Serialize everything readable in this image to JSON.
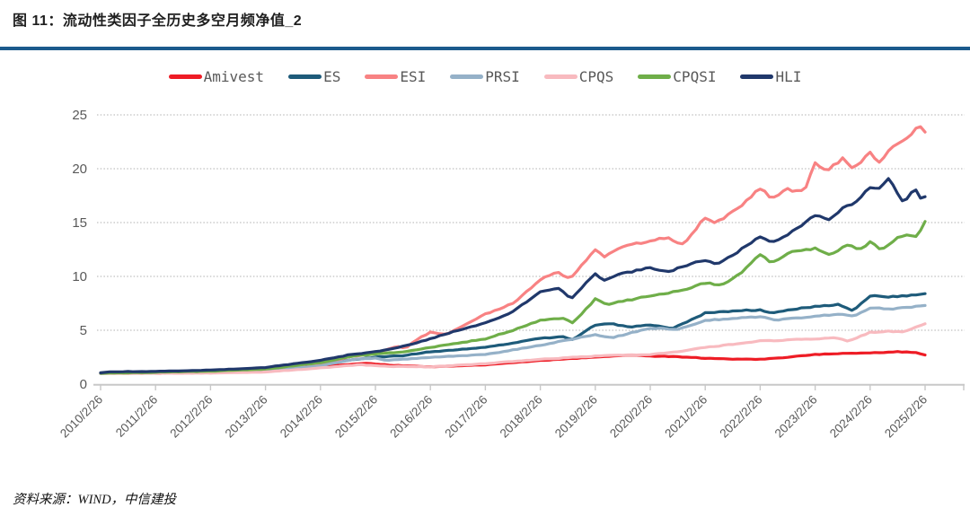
{
  "page": {
    "title": "图 11：流动性类因子全历史多空月频净值_2",
    "source": "资料来源：WIND，中信建投"
  },
  "colors": {
    "title_rule": "#1b5a8c",
    "axis_line": "#c8c8c8",
    "gridline": "#b0b0b0",
    "tick_label": "#595959"
  },
  "chart_data": {
    "type": "line",
    "title": "流动性类因子全历史多空月频净值_2",
    "xlabel": "",
    "ylabel": "",
    "grid": "horizontal-dotted",
    "legend_position": "top",
    "x_axis": {
      "labels": [
        "2010/2/26",
        "2011/2/26",
        "2012/2/26",
        "2013/2/26",
        "2014/2/26",
        "2015/2/26",
        "2016/2/26",
        "2017/2/26",
        "2018/2/26",
        "2019/2/26",
        "2020/2/26",
        "2021/2/26",
        "2022/2/26",
        "2023/2/26",
        "2024/2/26",
        "2025/2/26"
      ],
      "label_rotation_deg": 45
    },
    "y_axis": {
      "min": 0,
      "max": 25,
      "step": 5,
      "ticks": [
        0,
        5,
        10,
        15,
        20,
        25
      ]
    },
    "x_unit": "years since 2010/2/26 (monthly net value series)",
    "series": [
      {
        "name": "Amivest",
        "color": "#ee1c25",
        "end_value": 2.7,
        "points": [
          [
            0,
            1.0
          ],
          [
            0.3,
            1.08
          ],
          [
            1,
            1.1
          ],
          [
            2,
            1.12
          ],
          [
            3,
            1.25
          ],
          [
            4,
            1.6
          ],
          [
            4.8,
            1.95
          ],
          [
            5.3,
            1.75
          ],
          [
            6,
            1.6
          ],
          [
            7,
            1.8
          ],
          [
            8,
            2.2
          ],
          [
            8.5,
            2.35
          ],
          [
            9,
            2.5
          ],
          [
            9.6,
            2.7
          ],
          [
            10,
            2.6
          ],
          [
            10.5,
            2.55
          ],
          [
            11,
            2.4
          ],
          [
            11.5,
            2.32
          ],
          [
            12,
            2.3
          ],
          [
            12.5,
            2.5
          ],
          [
            13,
            2.75
          ],
          [
            13.5,
            2.85
          ],
          [
            14,
            2.9
          ],
          [
            14.5,
            3.0
          ],
          [
            14.8,
            2.95
          ],
          [
            15,
            2.7
          ]
        ]
      },
      {
        "name": "ES",
        "color": "#1e5b7a",
        "end_value": 8.4,
        "points": [
          [
            0,
            1.0
          ],
          [
            1,
            1.1
          ],
          [
            2,
            1.15
          ],
          [
            3,
            1.3
          ],
          [
            4,
            1.85
          ],
          [
            4.5,
            2.2
          ],
          [
            5,
            2.5
          ],
          [
            5.5,
            2.65
          ],
          [
            6,
            3.0
          ],
          [
            7,
            3.4
          ],
          [
            7.5,
            3.8
          ],
          [
            8,
            4.25
          ],
          [
            8.4,
            4.4
          ],
          [
            8.6,
            4.15
          ],
          [
            9,
            5.5
          ],
          [
            9.3,
            5.6
          ],
          [
            9.6,
            5.3
          ],
          [
            10,
            5.5
          ],
          [
            10.4,
            5.15
          ],
          [
            11,
            6.6
          ],
          [
            11.5,
            6.8
          ],
          [
            12,
            6.9
          ],
          [
            12.2,
            6.6
          ],
          [
            12.6,
            6.95
          ],
          [
            13,
            7.2
          ],
          [
            13.4,
            7.4
          ],
          [
            13.7,
            6.8
          ],
          [
            14,
            8.2
          ],
          [
            14.4,
            8.1
          ],
          [
            14.7,
            8.2
          ],
          [
            15,
            8.4
          ]
        ]
      },
      {
        "name": "ESI",
        "color": "#f88283",
        "end_value": 23.4,
        "points": [
          [
            0,
            1.0
          ],
          [
            1,
            1.0
          ],
          [
            2,
            1.05
          ],
          [
            3,
            1.2
          ],
          [
            4,
            1.75
          ],
          [
            4.5,
            2.5
          ],
          [
            5,
            2.9
          ],
          [
            5.4,
            3.5
          ],
          [
            5.55,
            3.35
          ],
          [
            5.8,
            4.3
          ],
          [
            6,
            4.8
          ],
          [
            6.3,
            4.6
          ],
          [
            7,
            6.5
          ],
          [
            7.5,
            7.5
          ],
          [
            8,
            9.7
          ],
          [
            8.3,
            10.4
          ],
          [
            8.55,
            9.8
          ],
          [
            9,
            12.5
          ],
          [
            9.15,
            11.8
          ],
          [
            9.5,
            12.8
          ],
          [
            10,
            13.3
          ],
          [
            10.3,
            13.6
          ],
          [
            10.6,
            13.0
          ],
          [
            11,
            15.5
          ],
          [
            11.2,
            15.0
          ],
          [
            11.6,
            16.3
          ],
          [
            12,
            18.2
          ],
          [
            12.2,
            17.3
          ],
          [
            12.5,
            18.1
          ],
          [
            12.8,
            17.8
          ],
          [
            13,
            20.5
          ],
          [
            13.2,
            19.8
          ],
          [
            13.5,
            20.9
          ],
          [
            13.7,
            20.0
          ],
          [
            14,
            21.5
          ],
          [
            14.15,
            20.6
          ],
          [
            14.4,
            22.0
          ],
          [
            14.7,
            22.9
          ],
          [
            14.9,
            24.0
          ],
          [
            15,
            23.4
          ]
        ]
      },
      {
        "name": "PRSI",
        "color": "#95b1c8",
        "end_value": 7.3,
        "points": [
          [
            0,
            1.0
          ],
          [
            1,
            1.05
          ],
          [
            2,
            1.1
          ],
          [
            3,
            1.2
          ],
          [
            4,
            1.7
          ],
          [
            4.6,
            2.3
          ],
          [
            5,
            2.4
          ],
          [
            5.2,
            2.2
          ],
          [
            6,
            2.5
          ],
          [
            7,
            2.75
          ],
          [
            8,
            3.6
          ],
          [
            9,
            4.6
          ],
          [
            9.3,
            4.3
          ],
          [
            10,
            5.2
          ],
          [
            10.5,
            5.1
          ],
          [
            11,
            5.9
          ],
          [
            11.5,
            6.1
          ],
          [
            12,
            6.25
          ],
          [
            12.3,
            5.95
          ],
          [
            13,
            6.3
          ],
          [
            13.5,
            6.5
          ],
          [
            13.7,
            6.3
          ],
          [
            14,
            7.1
          ],
          [
            14.4,
            6.95
          ],
          [
            14.7,
            7.15
          ],
          [
            15,
            7.3
          ]
        ]
      },
      {
        "name": "CPQS",
        "color": "#f8babf",
        "end_value": 5.6,
        "points": [
          [
            0,
            1.0
          ],
          [
            1,
            1.0
          ],
          [
            2,
            1.03
          ],
          [
            3,
            1.12
          ],
          [
            4,
            1.5
          ],
          [
            4.7,
            1.8
          ],
          [
            5.3,
            1.65
          ],
          [
            6,
            1.6
          ],
          [
            7,
            1.9
          ],
          [
            8,
            2.3
          ],
          [
            9,
            2.6
          ],
          [
            9.5,
            2.7
          ],
          [
            10,
            2.75
          ],
          [
            10.5,
            3.0
          ],
          [
            11,
            3.4
          ],
          [
            11.5,
            3.7
          ],
          [
            12,
            4.0
          ],
          [
            12.5,
            4.1
          ],
          [
            13,
            4.2
          ],
          [
            13.4,
            4.3
          ],
          [
            13.6,
            4.0
          ],
          [
            14,
            4.8
          ],
          [
            14.3,
            4.9
          ],
          [
            14.6,
            4.85
          ],
          [
            15,
            5.6
          ]
        ]
      },
      {
        "name": "CPQSI",
        "color": "#6fae49",
        "end_value": 15.1,
        "points": [
          [
            0,
            1.0
          ],
          [
            1,
            1.1
          ],
          [
            2,
            1.2
          ],
          [
            3,
            1.4
          ],
          [
            4,
            2.0
          ],
          [
            4.6,
            2.6
          ],
          [
            5,
            2.8
          ],
          [
            5.5,
            3.0
          ],
          [
            6,
            3.4
          ],
          [
            6.5,
            3.8
          ],
          [
            7,
            4.2
          ],
          [
            7.5,
            5.0
          ],
          [
            8,
            5.9
          ],
          [
            8.4,
            6.1
          ],
          [
            8.6,
            5.7
          ],
          [
            9,
            7.9
          ],
          [
            9.2,
            7.4
          ],
          [
            9.6,
            7.8
          ],
          [
            10,
            8.2
          ],
          [
            10.5,
            8.6
          ],
          [
            11,
            9.4
          ],
          [
            11.3,
            9.2
          ],
          [
            11.7,
            10.5
          ],
          [
            12,
            12.1
          ],
          [
            12.2,
            11.3
          ],
          [
            12.6,
            12.3
          ],
          [
            13,
            12.6
          ],
          [
            13.3,
            12.0
          ],
          [
            13.6,
            13.0
          ],
          [
            13.8,
            12.4
          ],
          [
            14,
            13.2
          ],
          [
            14.2,
            12.5
          ],
          [
            14.5,
            13.6
          ],
          [
            14.7,
            13.9
          ],
          [
            14.85,
            13.6
          ],
          [
            15,
            15.1
          ]
        ]
      },
      {
        "name": "HLI",
        "color": "#20386b",
        "end_value": 17.4,
        "points": [
          [
            0,
            1.05
          ],
          [
            0.2,
            1.15
          ],
          [
            1,
            1.18
          ],
          [
            2,
            1.3
          ],
          [
            3,
            1.55
          ],
          [
            4,
            2.2
          ],
          [
            4.5,
            2.7
          ],
          [
            5,
            3.0
          ],
          [
            5.5,
            3.5
          ],
          [
            6,
            4.2
          ],
          [
            6.5,
            5.0
          ],
          [
            7,
            5.7
          ],
          [
            7.5,
            6.7
          ],
          [
            8,
            8.6
          ],
          [
            8.35,
            8.9
          ],
          [
            8.55,
            7.85
          ],
          [
            9,
            10.25
          ],
          [
            9.15,
            9.6
          ],
          [
            9.5,
            10.3
          ],
          [
            10,
            10.8
          ],
          [
            10.3,
            10.4
          ],
          [
            10.7,
            11.1
          ],
          [
            11,
            11.5
          ],
          [
            11.2,
            11.15
          ],
          [
            11.6,
            12.3
          ],
          [
            12,
            13.75
          ],
          [
            12.2,
            13.1
          ],
          [
            12.6,
            14.2
          ],
          [
            13,
            15.7
          ],
          [
            13.25,
            15.2
          ],
          [
            13.5,
            16.3
          ],
          [
            13.75,
            17.0
          ],
          [
            14.0,
            18.3
          ],
          [
            14.15,
            18.2
          ],
          [
            14.35,
            19.1
          ],
          [
            14.6,
            16.8
          ],
          [
            14.8,
            18.2
          ],
          [
            14.95,
            17.0
          ],
          [
            15,
            17.4
          ]
        ]
      }
    ]
  }
}
